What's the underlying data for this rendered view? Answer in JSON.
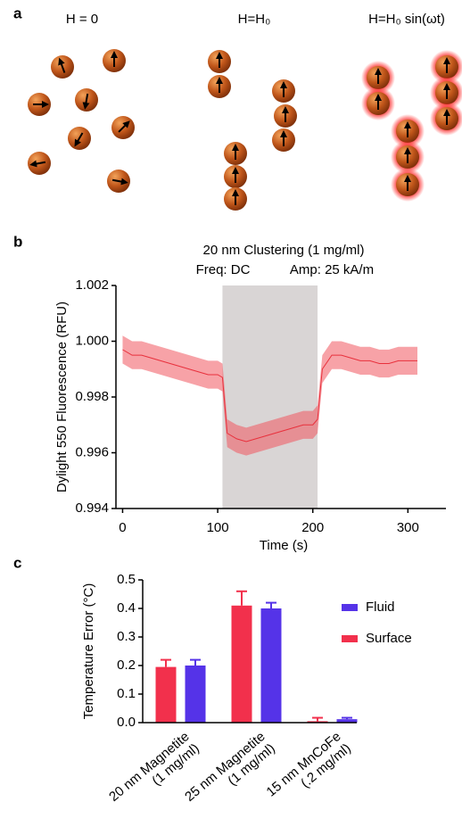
{
  "panel_labels": [
    "a",
    "b",
    "c"
  ],
  "diagram": {
    "titles": [
      "H = 0",
      "H=H₀",
      "H=H₀ sin(ωt)"
    ]
  },
  "chart_data": [
    {
      "type": "line",
      "annotations": [
        "20 nm Clustering (1 mg/ml)",
        "Freq: DC",
        "Amp: 25 kA/m"
      ],
      "xlabel": "Time (s)",
      "ylabel": "Dylight 550 Fluorescence (RFU)",
      "x": [
        0,
        10,
        20,
        30,
        40,
        50,
        60,
        70,
        80,
        90,
        100,
        105,
        110,
        120,
        130,
        140,
        150,
        160,
        170,
        180,
        190,
        200,
        205,
        210,
        220,
        230,
        240,
        250,
        260,
        270,
        280,
        290,
        300,
        310
      ],
      "series": [
        {
          "color": "#f0555f",
          "values": [
            0.9997,
            0.9995,
            0.9995,
            0.9994,
            0.9993,
            0.9992,
            0.9991,
            0.999,
            0.9989,
            0.9988,
            0.9988,
            0.9987,
            0.9967,
            0.9965,
            0.9964,
            0.9965,
            0.9966,
            0.9967,
            0.9968,
            0.9969,
            0.997,
            0.997,
            0.9972,
            0.999,
            0.9995,
            0.9995,
            0.9994,
            0.9993,
            0.9993,
            0.9992,
            0.9992,
            0.9993,
            0.9993,
            0.9993
          ],
          "upper": [
            1.0002,
            1.0,
            1.0,
            0.9999,
            0.9998,
            0.9997,
            0.9996,
            0.9995,
            0.9994,
            0.9993,
            0.9993,
            0.9992,
            0.9972,
            0.997,
            0.9969,
            0.997,
            0.9971,
            0.9972,
            0.9973,
            0.9974,
            0.9975,
            0.9975,
            0.9977,
            0.9995,
            1.0,
            1.0,
            0.9999,
            0.9998,
            0.9998,
            0.9997,
            0.9997,
            0.9998,
            0.9998,
            0.9998
          ],
          "lower": [
            0.9992,
            0.999,
            0.999,
            0.9989,
            0.9988,
            0.9987,
            0.9986,
            0.9985,
            0.9984,
            0.9983,
            0.9983,
            0.9982,
            0.9962,
            0.996,
            0.9959,
            0.996,
            0.9961,
            0.9962,
            0.9963,
            0.9964,
            0.9965,
            0.9965,
            0.9967,
            0.9985,
            0.999,
            0.999,
            0.9989,
            0.9988,
            0.9988,
            0.9987,
            0.9987,
            0.9988,
            0.9988,
            0.9988
          ]
        }
      ],
      "shade": [
        105,
        205
      ],
      "shade_color": "#d9d5d5",
      "xlim": [
        -7,
        340
      ],
      "xticks": [
        0,
        100,
        200,
        300
      ],
      "ylim": [
        0.994,
        1.002
      ],
      "yticks": [
        0.994,
        0.996,
        0.998,
        {
          "value": 1,
          "label": "1.000"
        },
        1.002
      ]
    },
    {
      "type": "bar",
      "ylabel": "Temperature Error (°C)",
      "categories": [
        "20 nm Magnetite\n(1 mg/ml)",
        "25 nm Magnetite\n(1 mg/ml)",
        "15 nm MnCoFe\n(.2 mg/ml)"
      ],
      "series": [
        {
          "name": "Surface",
          "color": "#f2304c",
          "values": [
            0.195,
            0.41,
            0.005
          ],
          "errors": [
            0.025,
            0.05,
            0.012
          ]
        },
        {
          "name": "Fluid",
          "color": "#5533e8",
          "values": [
            0.2,
            0.4,
            0.012
          ],
          "errors": [
            0.02,
            0.02,
            0.005
          ]
        }
      ],
      "ylim": [
        0,
        0.5
      ],
      "yticks": [
        {
          "value": 0,
          "label": "0.0"
        },
        0.1,
        0.2,
        0.3,
        0.4,
        0.5
      ]
    }
  ]
}
